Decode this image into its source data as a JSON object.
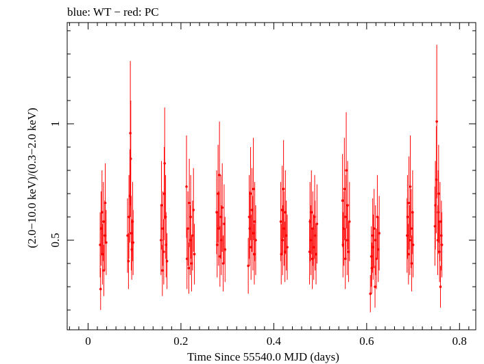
{
  "chart_data": {
    "type": "scatter",
    "title": "blue: WT − red: PC",
    "xlabel": "Time Since 55540.0 MJD (days)",
    "ylabel": "(2.0−10.0 keV)/(0.3−2.0 keV)",
    "xlim": [
      -0.045,
      0.835
    ],
    "ylim": [
      0.115,
      1.435
    ],
    "x_ticks": [
      0,
      0.2,
      0.4,
      0.6,
      0.8
    ],
    "x_tick_labels": [
      "0",
      "0.2",
      "0.4",
      "0.6",
      "0.8"
    ],
    "y_ticks": [
      0.5,
      1
    ],
    "y_tick_labels": [
      "0.5",
      "1"
    ],
    "colors": {
      "PC": "#ff0000",
      "WT": "#0000ff"
    },
    "series": [
      {
        "name": "PC",
        "color": "#ff0000",
        "points": [
          [
            0.026,
            0.48,
            0.14
          ],
          [
            0.027,
            0.29,
            0.09
          ],
          [
            0.028,
            0.55,
            0.16
          ],
          [
            0.03,
            0.62,
            0.18
          ],
          [
            0.031,
            0.44,
            0.13
          ],
          [
            0.033,
            0.58,
            0.17
          ],
          [
            0.034,
            0.37,
            0.11
          ],
          [
            0.036,
            0.52,
            0.15
          ],
          [
            0.037,
            0.66,
            0.17
          ],
          [
            0.039,
            0.49,
            0.14
          ],
          [
            0.085,
            0.52,
            0.16
          ],
          [
            0.087,
            0.41,
            0.12
          ],
          [
            0.088,
            0.6,
            0.18
          ],
          [
            0.09,
            0.69,
            0.2
          ],
          [
            0.091,
            0.96,
            0.31
          ],
          [
            0.092,
            0.85,
            0.25
          ],
          [
            0.093,
            0.53,
            0.16
          ],
          [
            0.094,
            0.46,
            0.13
          ],
          [
            0.096,
            0.58,
            0.17
          ],
          [
            0.097,
            0.49,
            0.14
          ],
          [
            0.157,
            0.5,
            0.15
          ],
          [
            0.158,
            0.65,
            0.19
          ],
          [
            0.16,
            0.37,
            0.11
          ],
          [
            0.161,
            0.55,
            0.16
          ],
          [
            0.163,
            0.45,
            0.14
          ],
          [
            0.164,
            0.7,
            0.2
          ],
          [
            0.165,
            0.83,
            0.24
          ],
          [
            0.167,
            0.6,
            0.18
          ],
          [
            0.168,
            0.48,
            0.14
          ],
          [
            0.17,
            0.41,
            0.12
          ],
          [
            0.212,
            0.73,
            0.22
          ],
          [
            0.213,
            0.42,
            0.13
          ],
          [
            0.215,
            0.55,
            0.16
          ],
          [
            0.217,
            0.38,
            0.11
          ],
          [
            0.218,
            0.66,
            0.19
          ],
          [
            0.22,
            0.5,
            0.15
          ],
          [
            0.221,
            0.6,
            0.18
          ],
          [
            0.223,
            0.4,
            0.12
          ],
          [
            0.225,
            0.52,
            0.15
          ],
          [
            0.227,
            0.63,
            0.18
          ],
          [
            0.229,
            0.44,
            0.13
          ],
          [
            0.277,
            0.62,
            0.18
          ],
          [
            0.278,
            0.48,
            0.14
          ],
          [
            0.28,
            0.7,
            0.21
          ],
          [
            0.281,
            0.55,
            0.16
          ],
          [
            0.283,
            0.78,
            0.23
          ],
          [
            0.284,
            0.43,
            0.13
          ],
          [
            0.286,
            0.6,
            0.18
          ],
          [
            0.287,
            0.5,
            0.15
          ],
          [
            0.289,
            0.64,
            0.19
          ],
          [
            0.291,
            0.4,
            0.12
          ],
          [
            0.293,
            0.57,
            0.17
          ],
          [
            0.295,
            0.46,
            0.14
          ],
          [
            0.345,
            0.39,
            0.12
          ],
          [
            0.347,
            0.6,
            0.18
          ],
          [
            0.348,
            0.55,
            0.16
          ],
          [
            0.35,
            0.7,
            0.2
          ],
          [
            0.351,
            0.47,
            0.14
          ],
          [
            0.353,
            0.63,
            0.18
          ],
          [
            0.355,
            0.53,
            0.16
          ],
          [
            0.356,
            0.72,
            0.22
          ],
          [
            0.358,
            0.44,
            0.13
          ],
          [
            0.359,
            0.58,
            0.17
          ],
          [
            0.361,
            0.5,
            0.15
          ],
          [
            0.415,
            0.58,
            0.17
          ],
          [
            0.416,
            0.44,
            0.13
          ],
          [
            0.418,
            0.63,
            0.19
          ],
          [
            0.419,
            0.5,
            0.15
          ],
          [
            0.421,
            0.72,
            0.21
          ],
          [
            0.422,
            0.55,
            0.16
          ],
          [
            0.424,
            0.45,
            0.13
          ],
          [
            0.425,
            0.62,
            0.18
          ],
          [
            0.427,
            0.52,
            0.15
          ],
          [
            0.429,
            0.47,
            0.14
          ],
          [
            0.477,
            0.45,
            0.14
          ],
          [
            0.478,
            0.58,
            0.17
          ],
          [
            0.48,
            0.5,
            0.15
          ],
          [
            0.481,
            0.62,
            0.18
          ],
          [
            0.483,
            0.42,
            0.13
          ],
          [
            0.484,
            0.55,
            0.16
          ],
          [
            0.486,
            0.47,
            0.14
          ],
          [
            0.488,
            0.6,
            0.18
          ],
          [
            0.489,
            0.52,
            0.15
          ],
          [
            0.491,
            0.44,
            0.13
          ],
          [
            0.493,
            0.57,
            0.17
          ],
          [
            0.548,
            0.67,
            0.2
          ],
          [
            0.549,
            0.48,
            0.14
          ],
          [
            0.551,
            0.55,
            0.16
          ],
          [
            0.552,
            0.72,
            0.22
          ],
          [
            0.554,
            0.42,
            0.13
          ],
          [
            0.555,
            0.6,
            0.18
          ],
          [
            0.556,
            0.8,
            0.25
          ],
          [
            0.558,
            0.5,
            0.15
          ],
          [
            0.559,
            0.65,
            0.19
          ],
          [
            0.561,
            0.45,
            0.13
          ],
          [
            0.563,
            0.58,
            0.17
          ],
          [
            0.608,
            0.27,
            0.08
          ],
          [
            0.61,
            0.43,
            0.13
          ],
          [
            0.611,
            0.38,
            0.11
          ],
          [
            0.613,
            0.52,
            0.16
          ],
          [
            0.614,
            0.47,
            0.14
          ],
          [
            0.616,
            0.55,
            0.17
          ],
          [
            0.618,
            0.3,
            0.09
          ],
          [
            0.619,
            0.5,
            0.15
          ],
          [
            0.621,
            0.42,
            0.13
          ],
          [
            0.623,
            0.6,
            0.18
          ],
          [
            0.625,
            0.46,
            0.14
          ],
          [
            0.627,
            0.53,
            0.16
          ],
          [
            0.687,
            0.52,
            0.16
          ],
          [
            0.688,
            0.6,
            0.18
          ],
          [
            0.69,
            0.44,
            0.13
          ],
          [
            0.691,
            0.66,
            0.2
          ],
          [
            0.693,
            0.5,
            0.15
          ],
          [
            0.694,
            0.73,
            0.22
          ],
          [
            0.696,
            0.55,
            0.17
          ],
          [
            0.697,
            0.4,
            0.12
          ],
          [
            0.699,
            0.62,
            0.18
          ],
          [
            0.7,
            0.48,
            0.14
          ],
          [
            0.747,
            0.56,
            0.17
          ],
          [
            0.748,
            0.65,
            0.19
          ],
          [
            0.75,
            0.76,
            0.23
          ],
          [
            0.751,
            1.01,
            0.33
          ],
          [
            0.753,
            0.5,
            0.15
          ],
          [
            0.754,
            0.62,
            0.18
          ],
          [
            0.755,
            0.7,
            0.21
          ],
          [
            0.757,
            0.45,
            0.13
          ],
          [
            0.758,
            0.58,
            0.17
          ],
          [
            0.759,
            0.3,
            0.09
          ],
          [
            0.761,
            0.52,
            0.15
          ],
          [
            0.762,
            0.48,
            0.14
          ]
        ]
      }
    ]
  }
}
